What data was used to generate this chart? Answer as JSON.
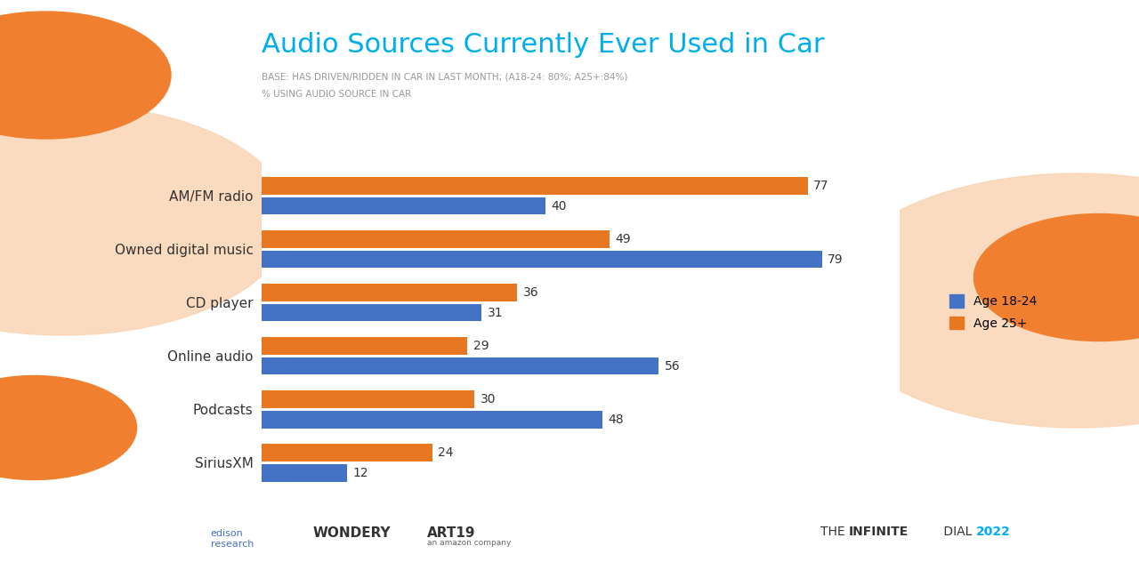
{
  "title": "Audio Sources Currently Ever Used in Car",
  "subtitle": "BASE: HAS DRIVEN/RIDDEN IN CAR IN LAST MONTH; (A18-24: 80%; A25+:84%)",
  "sub_subtitle": "% USING AUDIO SOURCE IN CAR",
  "categories": [
    "AM/FM radio",
    "Owned digital music",
    "CD player",
    "Online audio",
    "Podcasts",
    "SiriusXM"
  ],
  "age_18_24": [
    40,
    79,
    31,
    56,
    48,
    12
  ],
  "age_25_plus": [
    77,
    49,
    36,
    29,
    30,
    24
  ],
  "color_18_24": "#4472C4",
  "color_25_plus": "#E87722",
  "title_color": "#00AEEF",
  "subtitle_color": "#999999",
  "background_color": "#FFFFFF",
  "legend_label_18_24": "Age 18-24",
  "legend_label_25_plus": "Age 25+",
  "bar_height": 0.32,
  "bar_gap": 0.06,
  "xlim": [
    0,
    90
  ],
  "figure_bg": "#FFFFFF",
  "deco_orange": "#F08030",
  "deco_peach": "#FAD5B5"
}
